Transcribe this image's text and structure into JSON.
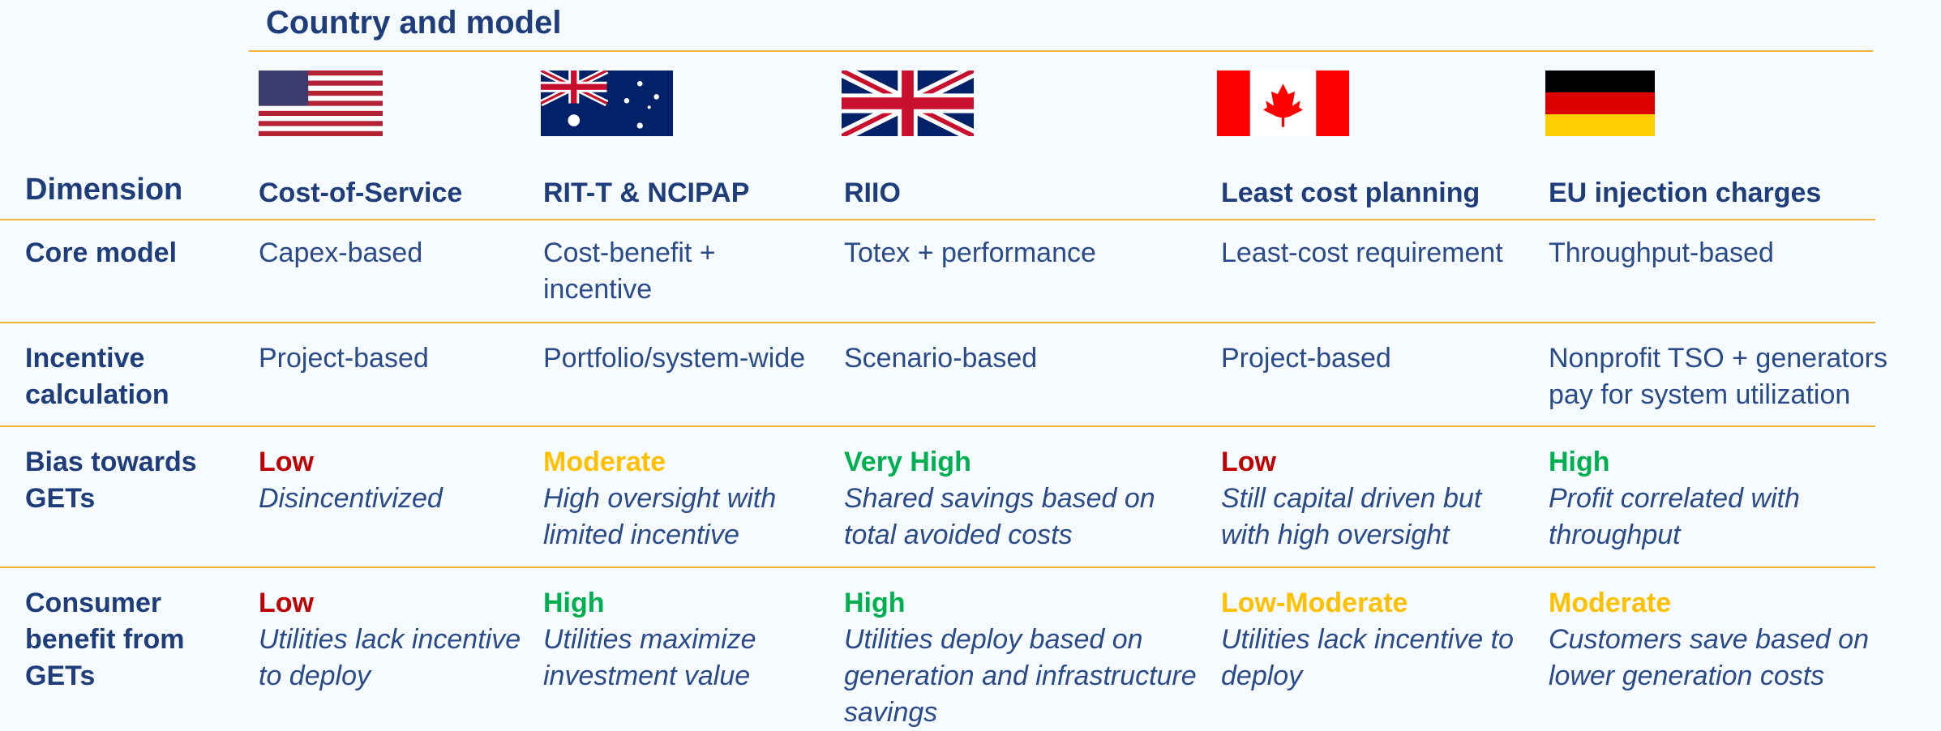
{
  "header": {
    "title": "Country and model"
  },
  "table": {
    "dimension_label": "Dimension",
    "columns": [
      "Cost-of-Service",
      "RIT-T & NCIPAP",
      "RIIO",
      "Least cost planning",
      "EU injection charges"
    ],
    "rows": [
      {
        "label": "Core model",
        "cells": [
          {
            "text": "Capex-based"
          },
          {
            "text": "Cost-benefit + incentive"
          },
          {
            "text": "Totex + performance"
          },
          {
            "text": "Least-cost requirement"
          },
          {
            "text": "Throughput-based"
          }
        ]
      },
      {
        "label": "Incentive calculation",
        "cells": [
          {
            "text": "Project-based"
          },
          {
            "text": "Portfolio/system-wide"
          },
          {
            "text": "Scenario-based"
          },
          {
            "text": "Project-based"
          },
          {
            "text": "Nonprofit TSO + generators pay for system utilization"
          }
        ]
      },
      {
        "label": "Bias towards GETs",
        "cells": [
          {
            "rating": "Low",
            "rating_color": "#c00000",
            "text": "Disincentivized"
          },
          {
            "rating": "Moderate",
            "rating_color": "#ffc000",
            "text": "High oversight with limited incentive"
          },
          {
            "rating": "Very High",
            "rating_color": "#00b050",
            "text": "Shared savings based on total avoided costs"
          },
          {
            "rating": "Low",
            "rating_color": "#c00000",
            "text": "Still capital driven but with high oversight"
          },
          {
            "rating": "High",
            "rating_color": "#00b050",
            "text": "Profit correlated with throughput"
          }
        ]
      },
      {
        "label": "Consumer benefit from GETs",
        "cells": [
          {
            "rating": "Low",
            "rating_color": "#c00000",
            "text": "Utilities lack incentive to deploy"
          },
          {
            "rating": "High",
            "rating_color": "#00b050",
            "text": "Utilities maximize investment value"
          },
          {
            "rating": "High",
            "rating_color": "#00b050",
            "text": "Utilities deploy based on generation and infrastructure savings"
          },
          {
            "rating": "Low-Moderate",
            "rating_color": "#ffc000",
            "text": "Utilities lack incentive to deploy"
          },
          {
            "rating": "Moderate",
            "rating_color": "#ffc000",
            "text": "Customers save based on lower generation costs"
          }
        ]
      }
    ]
  }
}
